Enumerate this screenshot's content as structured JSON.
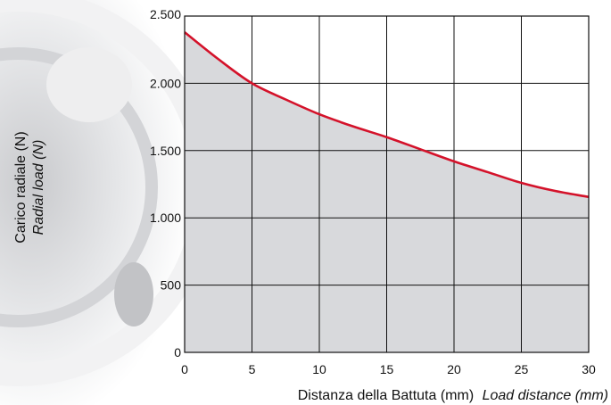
{
  "chart_data": {
    "type": "area",
    "title": "",
    "xlabel": "Distanza della Battuta (mm)",
    "xlabel_alt": "Load distance (mm)",
    "ylabel": "Carico radiale (N)",
    "ylabel_alt": "Radial load (N)",
    "xlim": [
      0,
      30
    ],
    "ylim": [
      0,
      2500
    ],
    "x_ticks": [
      0,
      5,
      10,
      15,
      20,
      25,
      30
    ],
    "x_tick_labels": [
      "0",
      "5",
      "10",
      "15",
      "20",
      "25",
      "30"
    ],
    "y_ticks": [
      0,
      500,
      1000,
      1500,
      2000,
      2500
    ],
    "y_tick_labels": [
      "0",
      "500",
      "1.000",
      "1.500",
      "2.000",
      "2.500"
    ],
    "grid": true,
    "series": [
      {
        "x": [
          0,
          2.5,
          5,
          7.5,
          10,
          12.5,
          15,
          17.5,
          20,
          22.5,
          25,
          27.5,
          30
        ],
        "values": [
          2380,
          2180,
          2000,
          1880,
          1770,
          1680,
          1600,
          1510,
          1420,
          1340,
          1260,
          1200,
          1155
        ],
        "color": "#d4122a",
        "fill": "#d8d9dc"
      }
    ]
  }
}
